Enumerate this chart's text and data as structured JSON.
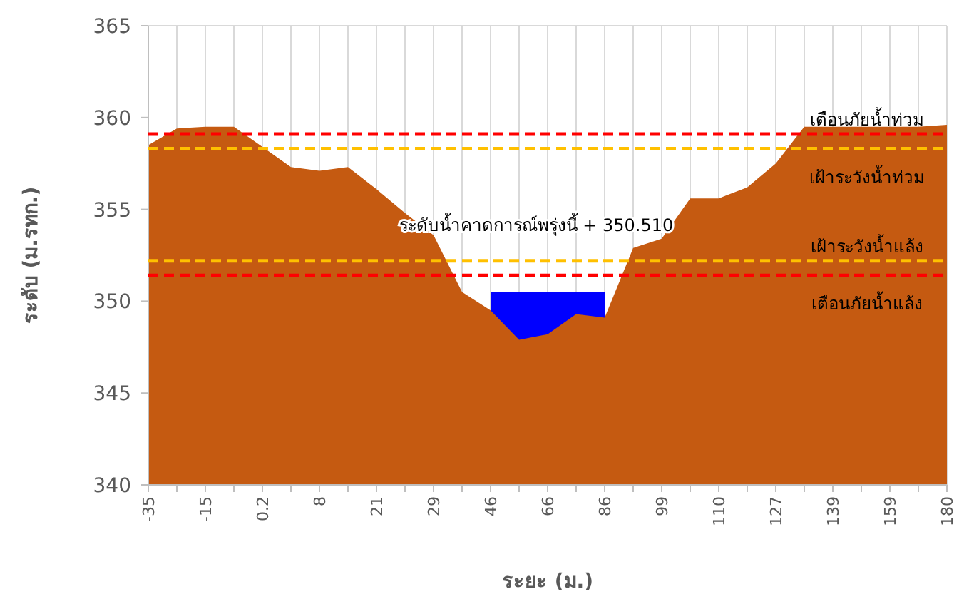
{
  "chart_data": {
    "type": "area",
    "xlabel": "ระยะ (ม.)",
    "ylabel": "ระดับ (ม.รทก.)",
    "categories": [
      "-35",
      null,
      "-15",
      null,
      "0.2",
      null,
      "8",
      null,
      "21",
      null,
      "29",
      null,
      "46",
      null,
      "66",
      null,
      "86",
      null,
      "99",
      null,
      "110",
      null,
      "127",
      null,
      "139",
      null,
      "159",
      null,
      "180"
    ],
    "series": [
      {
        "color": "#0000ff",
        "values": [
          null,
          null,
          null,
          null,
          null,
          null,
          null,
          null,
          null,
          null,
          null,
          null,
          350.51,
          350.51,
          350.51,
          350.51,
          350.51,
          null,
          null,
          null,
          null,
          null,
          null,
          null,
          null,
          null,
          null,
          null,
          null
        ]
      },
      {
        "color": "#c55a11",
        "values": [
          358.5,
          359.4,
          359.5,
          359.5,
          358.4,
          357.3,
          357.1,
          357.3,
          356.1,
          354.8,
          353.6,
          350.5,
          349.5,
          347.9,
          348.2,
          349.3,
          349.1,
          352.9,
          353.4,
          355.6,
          355.6,
          356.2,
          357.5,
          359.5,
          359.5,
          359.5,
          359.5,
          359.5,
          359.6
        ]
      }
    ],
    "ylim": [
      340,
      365
    ],
    "yticks": [
      340,
      345,
      350,
      355,
      360,
      365
    ],
    "grid": "x",
    "ref_lines": [
      {
        "axis": "y",
        "value": 359.1,
        "label": "เตือนภัยน้ำท่วม",
        "color": "#ff0000",
        "line_style": "dashed"
      },
      {
        "axis": "y",
        "value": 358.3,
        "label": "เฝ้าระวังน้ำท่วม",
        "color": "#ffc000",
        "line_style": "dashed"
      },
      {
        "axis": "y",
        "value": 352.2,
        "label": "เฝ้าระวังน้ำแล้ง",
        "color": "#ffc000",
        "line_style": "dashed"
      },
      {
        "axis": "y",
        "value": 351.4,
        "label": "เตือนภัยน้ำแล้ง",
        "color": "#ff0000",
        "line_style": "dashed"
      }
    ],
    "annotations": [
      "ระดับน้ำคาดการณ์พรุ่งนี้ + 350.510"
    ]
  }
}
